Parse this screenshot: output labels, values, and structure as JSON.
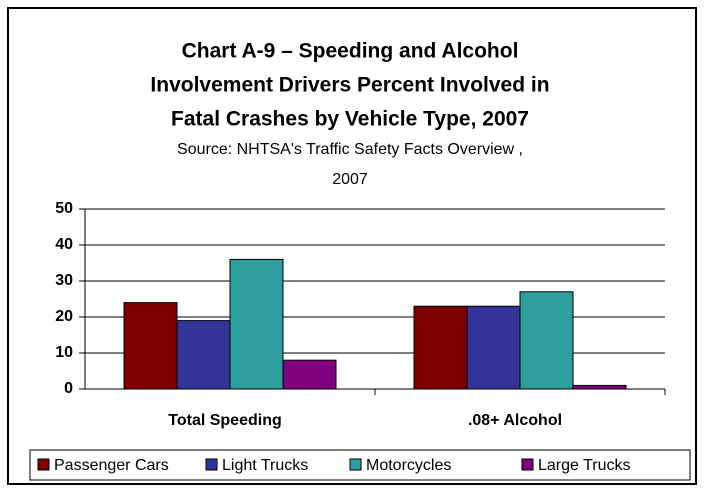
{
  "chart_data": {
    "type": "bar",
    "title": [
      "Chart A-9 – Speeding and Alcohol",
      "Involvement Drivers Percent Involved in",
      "Fatal Crashes by Vehicle Type, 2007"
    ],
    "subtitle": [
      "Source: NHTSA's Traffic Safety Facts Overview ,",
      "2007"
    ],
    "categories": [
      "Total Speeding",
      ".08+ Alcohol"
    ],
    "series": [
      {
        "name": "Passenger Cars",
        "color": "#800000",
        "values": [
          24,
          23
        ]
      },
      {
        "name": "Light Trucks",
        "color": "#333399",
        "values": [
          19,
          23
        ]
      },
      {
        "name": "Motorcycles",
        "color": "#2e9e9e",
        "values": [
          36,
          27
        ]
      },
      {
        "name": "Large Trucks",
        "color": "#800080",
        "values": [
          8,
          1
        ]
      }
    ],
    "ylim": [
      0,
      50
    ],
    "yticks": [
      0,
      10,
      20,
      30,
      40,
      50
    ],
    "grid": true,
    "legend": "bottom"
  }
}
